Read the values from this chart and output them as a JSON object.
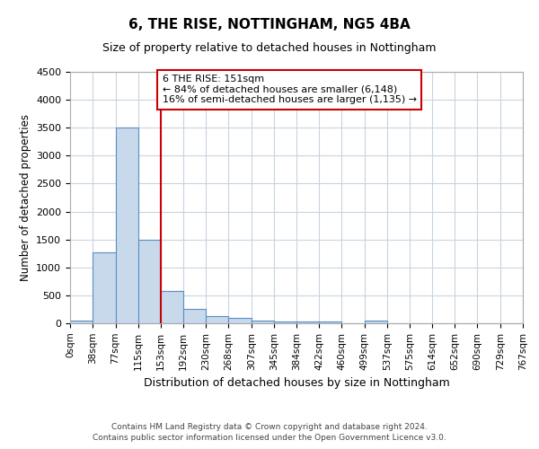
{
  "title": "6, THE RISE, NOTTINGHAM, NG5 4BA",
  "subtitle": "Size of property relative to detached houses in Nottingham",
  "xlabel": "Distribution of detached houses by size in Nottingham",
  "ylabel": "Number of detached properties",
  "bin_edges": [
    0,
    38,
    77,
    115,
    153,
    192,
    230,
    268,
    307,
    345,
    384,
    422,
    460,
    499,
    537,
    575,
    614,
    652,
    690,
    729,
    767
  ],
  "bar_heights": [
    50,
    1270,
    3500,
    1500,
    575,
    250,
    130,
    90,
    50,
    40,
    40,
    40,
    0,
    50,
    0,
    0,
    0,
    0,
    0,
    0
  ],
  "bar_color": "#c8d9ec",
  "bar_edge_color": "#5a8fc2",
  "vline_x": 153,
  "vline_color": "#cc0000",
  "annotation_line1": "6 THE RISE: 151sqm",
  "annotation_line2": "← 84% of detached houses are smaller (6,148)",
  "annotation_line3": "16% of semi-detached houses are larger (1,135) →",
  "annotation_box_color": "#ffffff",
  "annotation_box_edge": "#cc0000",
  "ylim": [
    0,
    4500
  ],
  "yticks": [
    0,
    500,
    1000,
    1500,
    2000,
    2500,
    3000,
    3500,
    4000,
    4500
  ],
  "tick_labels": [
    "0sqm",
    "38sqm",
    "77sqm",
    "115sqm",
    "153sqm",
    "192sqm",
    "230sqm",
    "268sqm",
    "307sqm",
    "345sqm",
    "384sqm",
    "422sqm",
    "460sqm",
    "499sqm",
    "537sqm",
    "575sqm",
    "614sqm",
    "652sqm",
    "690sqm",
    "729sqm",
    "767sqm"
  ],
  "footer1": "Contains HM Land Registry data © Crown copyright and database right 2024.",
  "footer2": "Contains public sector information licensed under the Open Government Licence v3.0.",
  "bg_color": "#ffffff",
  "grid_color": "#c8d4e0"
}
